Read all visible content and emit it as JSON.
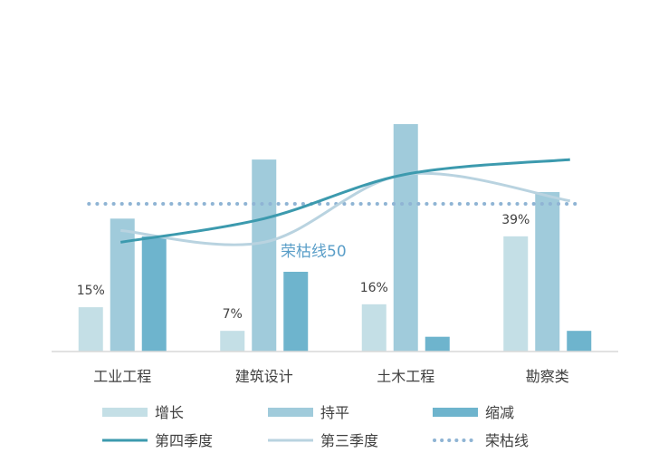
{
  "chart_data": {
    "type": "bar",
    "categories": [
      "工业工程",
      "建筑设计",
      "土木工程",
      "勘察类"
    ],
    "ylim": [
      0,
      100
    ],
    "bar_series": [
      {
        "name": "增长",
        "values": [
          15,
          7,
          16,
          39
        ],
        "data_labels": [
          "15%",
          "7%",
          "16%",
          "39%"
        ],
        "color": "#c4dfe6"
      },
      {
        "name": "持平",
        "values": [
          45,
          65,
          77,
          54
        ],
        "color": "#a0cbdb"
      },
      {
        "name": "缩减",
        "values": [
          39,
          27,
          5,
          7
        ],
        "color": "#6eb4cd"
      }
    ],
    "line_series": [
      {
        "name": "第四季度",
        "values": [
          37,
          45,
          60,
          65
        ],
        "color": "#3c9aae",
        "style": "solid-smooth"
      },
      {
        "name": "第三季度",
        "values": [
          41,
          37,
          60,
          51
        ],
        "color": "#b9d3e0",
        "style": "solid-smooth"
      }
    ],
    "reference_line": {
      "name": "荣枯线",
      "value": 50,
      "label": "荣枯线50",
      "color": "#8fb4d4",
      "style": "dotted"
    },
    "legend": {
      "position": "bottom"
    },
    "grid": false
  }
}
